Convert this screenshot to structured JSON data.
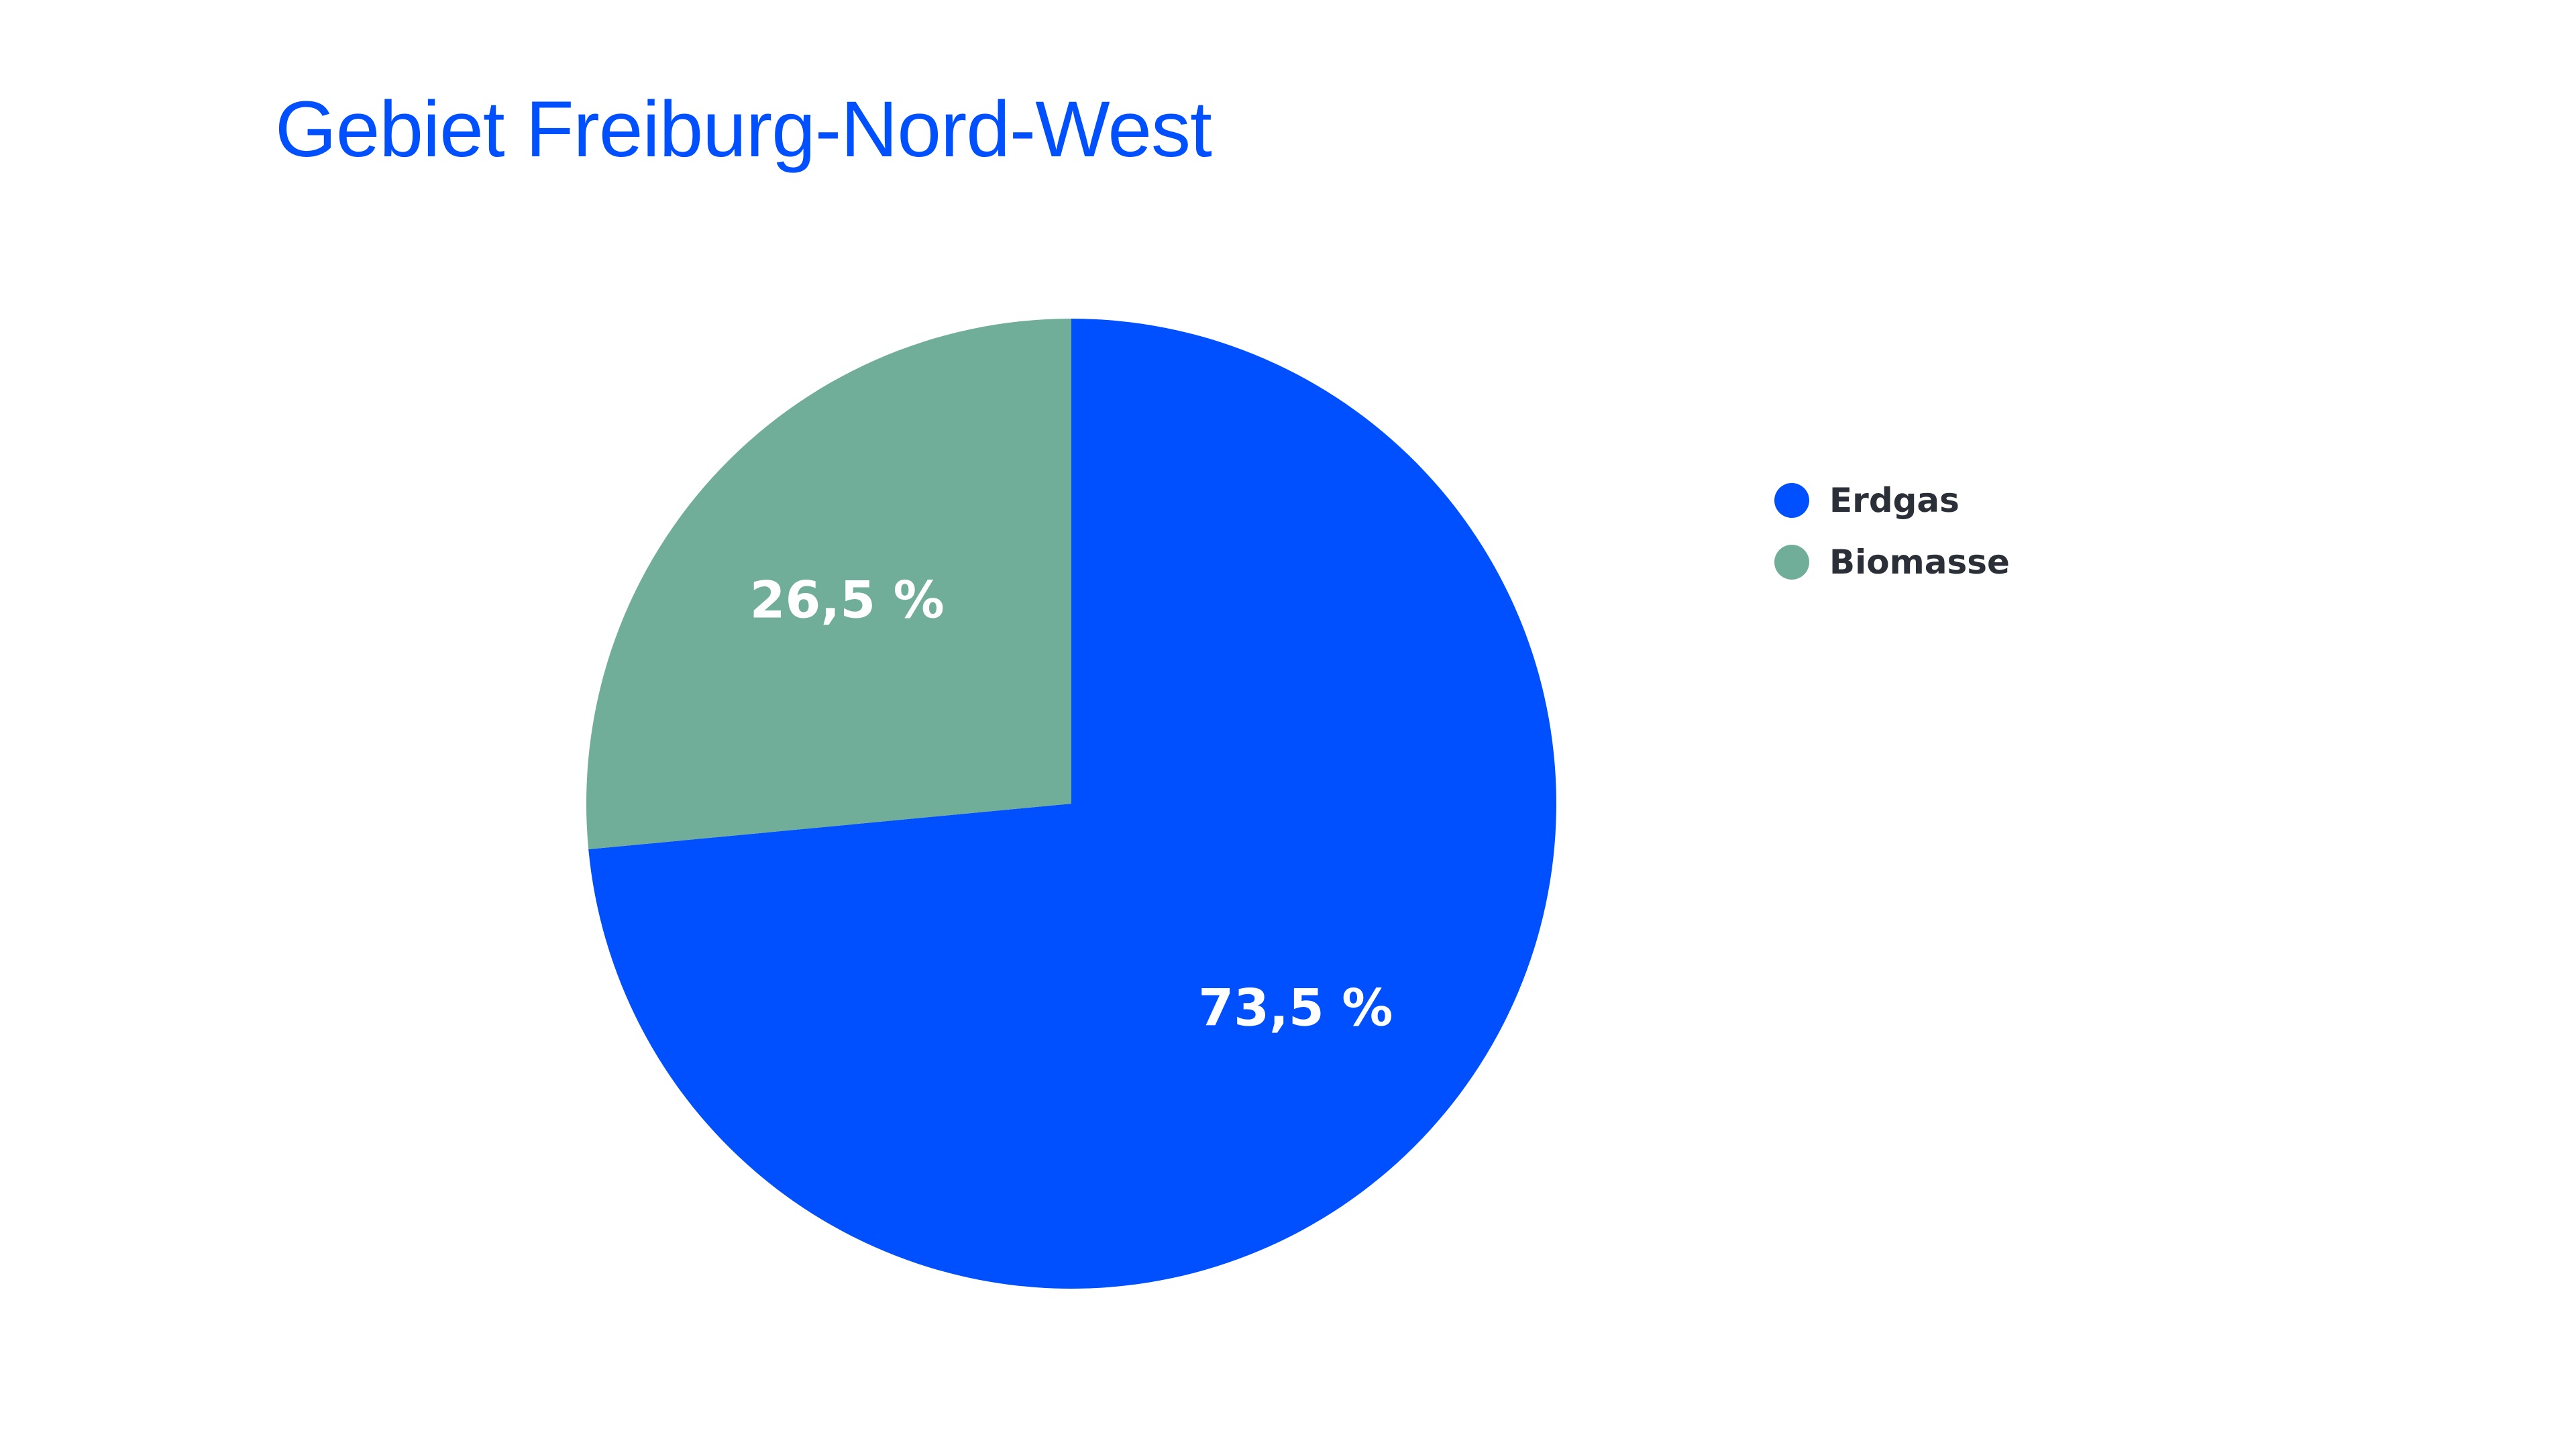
{
  "chart_data": {
    "type": "pie",
    "title": "Gebiet Freiburg-Nord-West",
    "start": "top",
    "direction": "clockwise",
    "legend_position": "right",
    "slices": [
      {
        "label": "Erdgas",
        "value": 73.5,
        "display": "73,5 %",
        "color": "#0050ff"
      },
      {
        "label": "Biomasse",
        "value": 26.5,
        "display": "26,5 %",
        "color": "#70ae99"
      }
    ]
  }
}
